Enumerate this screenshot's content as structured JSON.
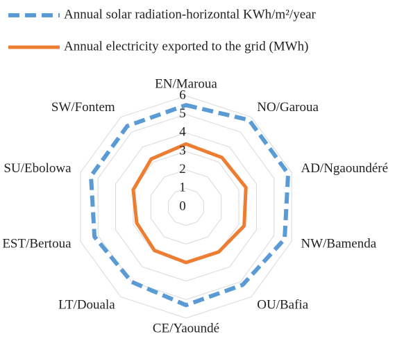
{
  "chart_data": {
    "type": "radar",
    "categories": [
      "EN/Maroua",
      "NO/Garoua",
      "AD/Ngaoundéré",
      "NW/Bamenda",
      "OU/Bafia",
      "CE/Yaoundé",
      "LT/Douala",
      "EST/Bertoua",
      "SU/Ebolowa",
      "SW/Fontem"
    ],
    "series": [
      {
        "name": "Annual solar radiation-horizontal KWh/m²/year",
        "color": "#5b9bd5",
        "dashed": true,
        "values": [
          5.5,
          5.8,
          5.8,
          5.6,
          5.2,
          5.3,
          5.0,
          5.2,
          5.4,
          5.4
        ]
      },
      {
        "name": "Annual electricity exported to the grid (MWh)",
        "color": "#ed7d31",
        "dashed": false,
        "values": [
          3.4,
          3.3,
          3.4,
          3.3,
          3.0,
          3.0,
          2.9,
          2.8,
          3.0,
          3.2
        ]
      }
    ],
    "ylim": [
      0,
      6
    ],
    "yticks": [
      0,
      1,
      2,
      3,
      4,
      5,
      6
    ],
    "grid": true,
    "legend": "top-left"
  }
}
